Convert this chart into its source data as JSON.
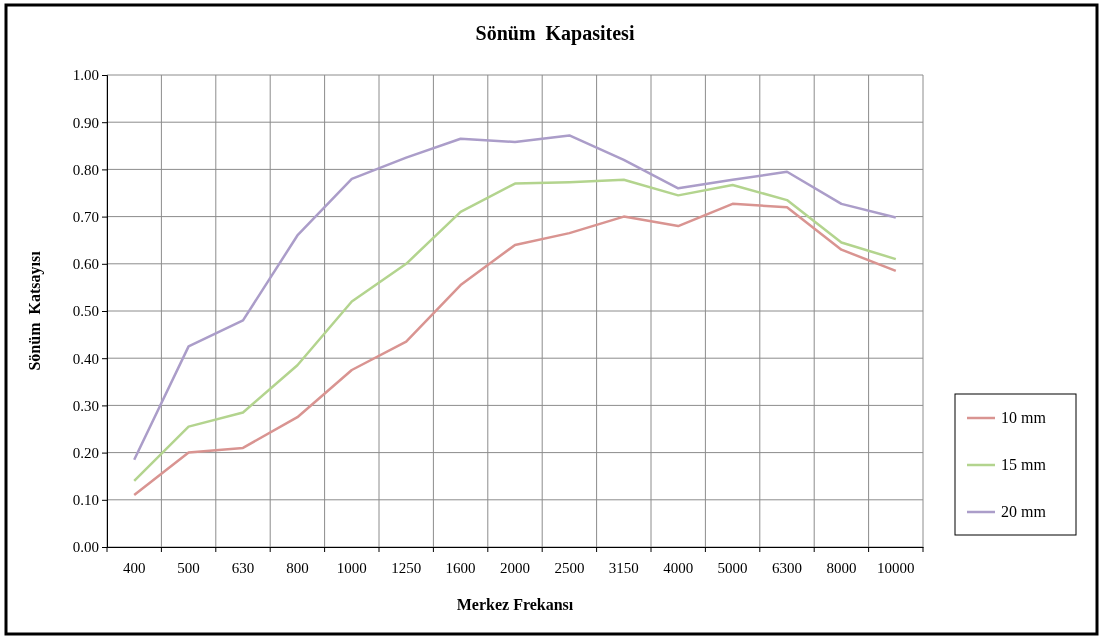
{
  "chart_data": {
    "type": "line",
    "title": "Sönüm  Kapasitesi",
    "xlabel": "Merkez Frekansı",
    "ylabel": "Sönüm  Katsayısı",
    "categories": [
      "400",
      "500",
      "630",
      "800",
      "1000",
      "1250",
      "1600",
      "2000",
      "2500",
      "3150",
      "4000",
      "5000",
      "6300",
      "8000",
      "10000"
    ],
    "series": [
      {
        "name": "10 mm",
        "color": "#d99491",
        "values": [
          0.11,
          0.2,
          0.21,
          0.275,
          0.375,
          0.435,
          0.555,
          0.64,
          0.665,
          0.7,
          0.68,
          0.727,
          0.72,
          0.63,
          0.585
        ]
      },
      {
        "name": "15 mm",
        "color": "#b3d48e",
        "values": [
          0.14,
          0.255,
          0.285,
          0.385,
          0.52,
          0.6,
          0.71,
          0.77,
          0.773,
          0.778,
          0.745,
          0.767,
          0.735,
          0.645,
          0.61
        ]
      },
      {
        "name": "20 mm",
        "color": "#ab9dc9",
        "values": [
          0.185,
          0.425,
          0.48,
          0.66,
          0.78,
          0.825,
          0.865,
          0.858,
          0.872,
          0.82,
          0.76,
          0.778,
          0.795,
          0.727,
          0.698
        ]
      }
    ],
    "ylim": [
      0,
      1
    ],
    "yticks": [
      {
        "value": 0,
        "label": "0.00"
      },
      {
        "value": 0.1,
        "label": "0.10"
      },
      {
        "value": 0.2,
        "label": "0.20"
      },
      {
        "value": 0.3,
        "label": "0.30"
      },
      {
        "value": 0.4,
        "label": "0.40"
      },
      {
        "value": 0.5,
        "label": "0.50"
      },
      {
        "value": 0.6,
        "label": "0.60"
      },
      {
        "value": 0.7,
        "label": "0.70"
      },
      {
        "value": 0.8,
        "label": "0.80"
      },
      {
        "value": 0.9,
        "label": "0.90"
      },
      {
        "value": 1,
        "label": "1.00"
      }
    ],
    "grid": true,
    "legend": "right",
    "marker": "none",
    "line_style": "solid"
  }
}
